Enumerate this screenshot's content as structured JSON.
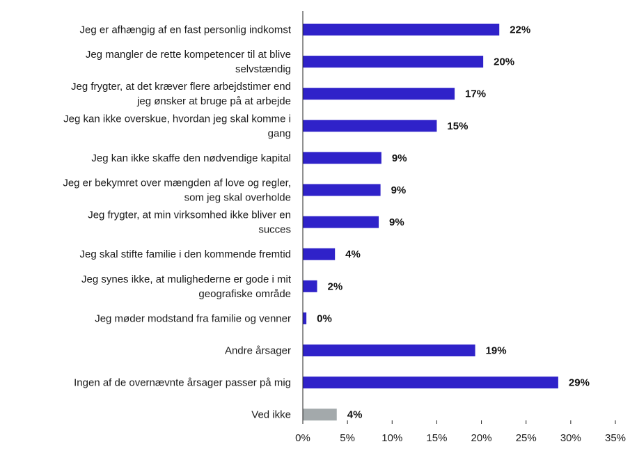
{
  "chart_data": {
    "type": "bar",
    "orientation": "horizontal",
    "title": "",
    "xlabel": "",
    "ylabel": "",
    "xlim": [
      0,
      35
    ],
    "x_ticks": [
      "0%",
      "5%",
      "10%",
      "15%",
      "20%",
      "25%",
      "30%",
      "35%"
    ],
    "x_tick_values": [
      0,
      5,
      10,
      15,
      20,
      25,
      30,
      35
    ],
    "grid": false,
    "legend": "none",
    "categories": [
      [
        "Jeg er afhængig af en fast personlig indkomst"
      ],
      [
        "Jeg mangler de rette kompetencer til at blive",
        "selvstændig"
      ],
      [
        "Jeg frygter, at det kræver flere arbejdstimer end",
        "jeg ønsker at bruge på at arbejde"
      ],
      [
        "Jeg kan ikke overskue, hvordan jeg skal komme i",
        "gang"
      ],
      [
        "Jeg kan ikke skaffe den nødvendige kapital"
      ],
      [
        "Jeg er bekymret over mængden af love og regler,",
        "som jeg skal overholde"
      ],
      [
        "Jeg frygter, at min virksomhed ikke bliver en",
        "succes"
      ],
      [
        "Jeg skal stifte familie i den kommende fremtid"
      ],
      [
        "Jeg synes ikke, at mulighederne er gode i mit",
        "geografiske område"
      ],
      [
        "Jeg møder modstand fra familie og venner"
      ],
      [
        "Andre årsager"
      ],
      [
        "Ingen af de overnævnte årsager passer på mig"
      ],
      [
        "Ved ikke"
      ]
    ],
    "values": [
      22,
      20.2,
      17,
      15,
      8.8,
      8.7,
      8.5,
      3.6,
      1.6,
      0.4,
      19.3,
      28.6,
      3.8
    ],
    "value_labels": [
      "22%",
      "20%",
      "17%",
      "15%",
      "9%",
      "9%",
      "9%",
      "4%",
      "2%",
      "0%",
      "19%",
      "29%",
      "4%"
    ],
    "colors": [
      "#2f22c9",
      "#2f22c9",
      "#2f22c9",
      "#2f22c9",
      "#2f22c9",
      "#2f22c9",
      "#2f22c9",
      "#2f22c9",
      "#2f22c9",
      "#2f22c9",
      "#2f22c9",
      "#2f22c9",
      "#a3a9ab"
    ]
  }
}
